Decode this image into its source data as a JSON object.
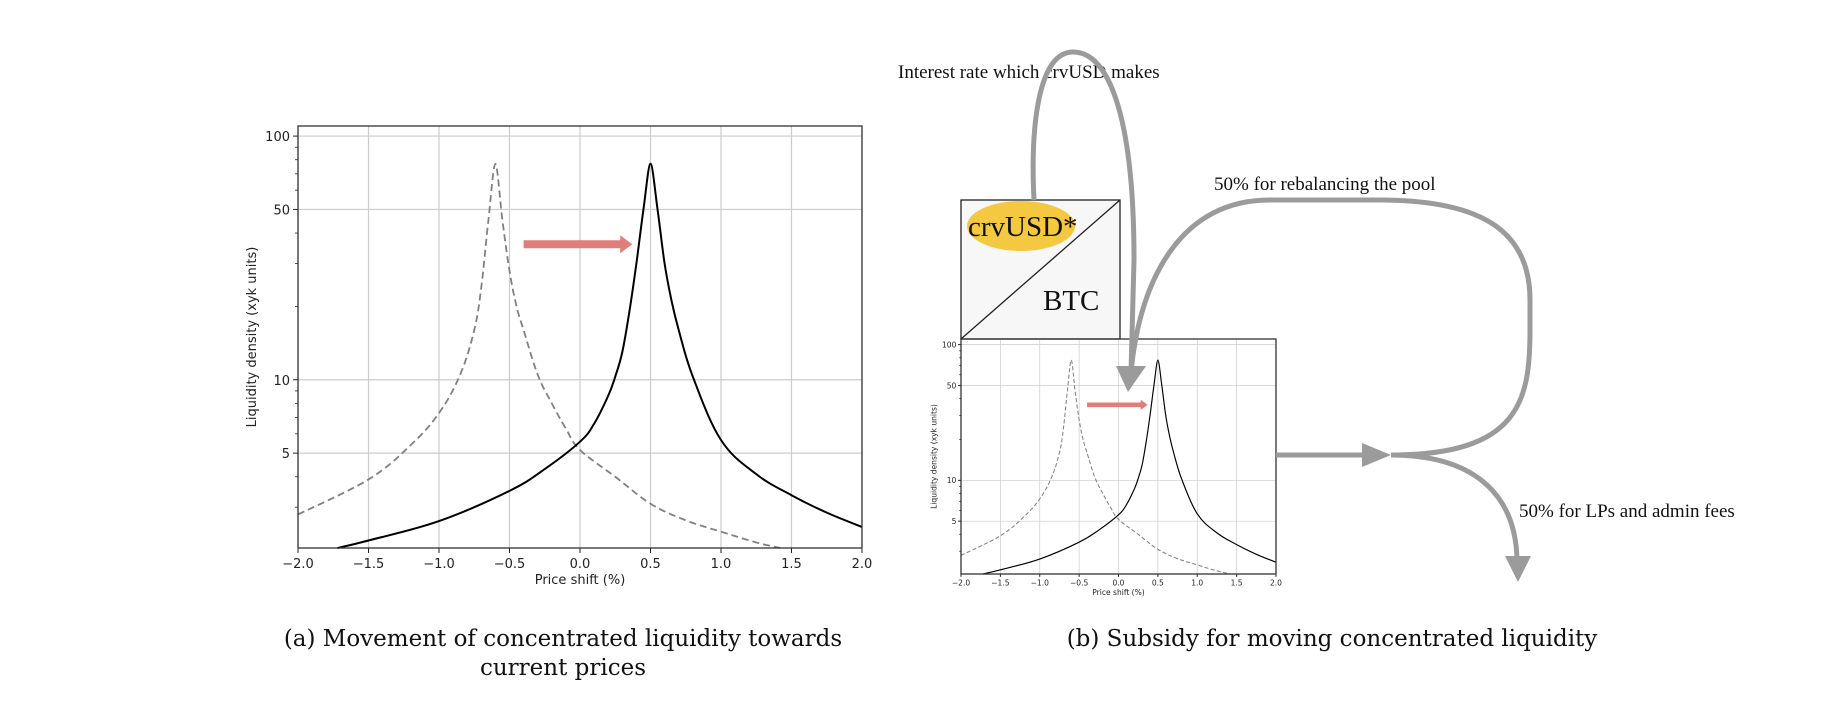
{
  "figure_a": {
    "caption_line1": "(a) Movement of concentrated liquidity towards",
    "caption_line2": "current prices"
  },
  "figure_b": {
    "caption": "(b) Subsidy for moving concentrated liquidity",
    "interest_label": "Interest rate which crvUSD makes",
    "rebalancing_label": "50% for rebalancing the pool",
    "lps_label": "50% for LPs and admin fees",
    "pool": {
      "token_top": "crvUSD*",
      "token_bottom": "BTC"
    }
  },
  "colors": {
    "shift_arrow": "#e07f7a",
    "flow_arrow": "#9b9b9b",
    "crvusd_highlight": "#f5c842",
    "pool_box_fill": "#f7f7f7",
    "current_curve": "#000000",
    "previous_curve": "#808080",
    "grid": "#cccccc"
  },
  "chart_data": [
    {
      "type": "line",
      "xlabel": "Price shift (%)",
      "ylabel": "Liquidity density (xyk units)",
      "xlim": [
        -2.0,
        2.0
      ],
      "ylim": [
        2.04,
        110
      ],
      "yscale": "log",
      "grid": true,
      "x_ticks": [
        "−2.0",
        "−1.5",
        "−1.0",
        "−0.5",
        "0.0",
        "0.5",
        "1.0",
        "1.5",
        "2.0"
      ],
      "x_tick_values": [
        -2.0,
        -1.5,
        -1.0,
        -0.5,
        0.0,
        0.5,
        1.0,
        1.5,
        2.0
      ],
      "y_ticks": [
        "5",
        "10",
        "50",
        "100"
      ],
      "y_tick_values": [
        5,
        10,
        50,
        100
      ],
      "annotation": "arrow from previous peak toward current peak",
      "series": [
        {
          "style": "dashed",
          "x": [
            -2.0,
            -1.5,
            -1.2,
            -1.0,
            -0.85,
            -0.75,
            -0.7,
            -0.65,
            -0.6,
            -0.55,
            -0.5,
            -0.45,
            -0.4,
            -0.3,
            -0.2,
            -0.1,
            0.0,
            0.25,
            0.5,
            0.75,
            1.0,
            1.25,
            1.42
          ],
          "y": [
            2.8,
            3.9,
            5.4,
            7.3,
            10.5,
            16,
            24,
            45,
            77,
            45,
            28,
            20,
            16,
            10.5,
            8,
            6.3,
            5.15,
            4.0,
            3.1,
            2.65,
            2.38,
            2.15,
            2.04
          ]
        },
        {
          "style": "solid",
          "x": [
            -1.72,
            -1.5,
            -1.0,
            -0.5,
            -0.25,
            0.0,
            0.1,
            0.2,
            0.25,
            0.3,
            0.35,
            0.4,
            0.45,
            0.5,
            0.55,
            0.6,
            0.65,
            0.7,
            0.8,
            1.0,
            1.25,
            1.5,
            1.75,
            2.0
          ],
          "y": [
            2.04,
            2.19,
            2.63,
            3.5,
            4.3,
            5.57,
            6.6,
            8.6,
            10.3,
            13,
            19,
            30,
            50,
            77,
            50,
            30,
            21,
            16,
            10.3,
            5.66,
            4.1,
            3.36,
            2.85,
            2.49
          ]
        }
      ]
    },
    {
      "type": "line",
      "xlabel": "Price shift (%)",
      "ylabel": "Liquidity density (xyk units)",
      "xlim": [
        -2.0,
        2.0
      ],
      "ylim": [
        2.04,
        110
      ],
      "yscale": "log",
      "grid": true,
      "x_ticks": [
        "−2.0",
        "−1.5",
        "−1.0",
        "−0.5",
        "0.0",
        "0.5",
        "1.0",
        "1.5",
        "2.0"
      ],
      "x_tick_values": [
        -2.0,
        -1.5,
        -1.0,
        -0.5,
        0.0,
        0.5,
        1.0,
        1.5,
        2.0
      ],
      "y_ticks": [
        "5",
        "10",
        "50",
        "100"
      ],
      "y_tick_values": [
        5,
        10,
        50,
        100
      ],
      "series": [
        {
          "style": "dashed",
          "x": [
            -2.0,
            -1.5,
            -1.2,
            -1.0,
            -0.85,
            -0.75,
            -0.7,
            -0.65,
            -0.6,
            -0.55,
            -0.5,
            -0.45,
            -0.4,
            -0.3,
            -0.2,
            -0.1,
            0.0,
            0.25,
            0.5,
            0.75,
            1.0,
            1.25,
            1.42
          ],
          "y": [
            2.8,
            3.9,
            5.4,
            7.3,
            10.5,
            16,
            24,
            45,
            77,
            45,
            28,
            20,
            16,
            10.5,
            8,
            6.3,
            5.15,
            4.0,
            3.1,
            2.65,
            2.38,
            2.15,
            2.04
          ]
        },
        {
          "style": "solid",
          "x": [
            -1.72,
            -1.5,
            -1.0,
            -0.5,
            -0.25,
            0.0,
            0.1,
            0.2,
            0.25,
            0.3,
            0.35,
            0.4,
            0.45,
            0.5,
            0.55,
            0.6,
            0.65,
            0.7,
            0.8,
            1.0,
            1.25,
            1.5,
            1.75,
            2.0
          ],
          "y": [
            2.04,
            2.19,
            2.63,
            3.5,
            4.3,
            5.57,
            6.6,
            8.6,
            10.3,
            13,
            19,
            30,
            50,
            77,
            50,
            30,
            21,
            16,
            10.3,
            5.66,
            4.1,
            3.36,
            2.85,
            2.49
          ]
        }
      ]
    }
  ]
}
